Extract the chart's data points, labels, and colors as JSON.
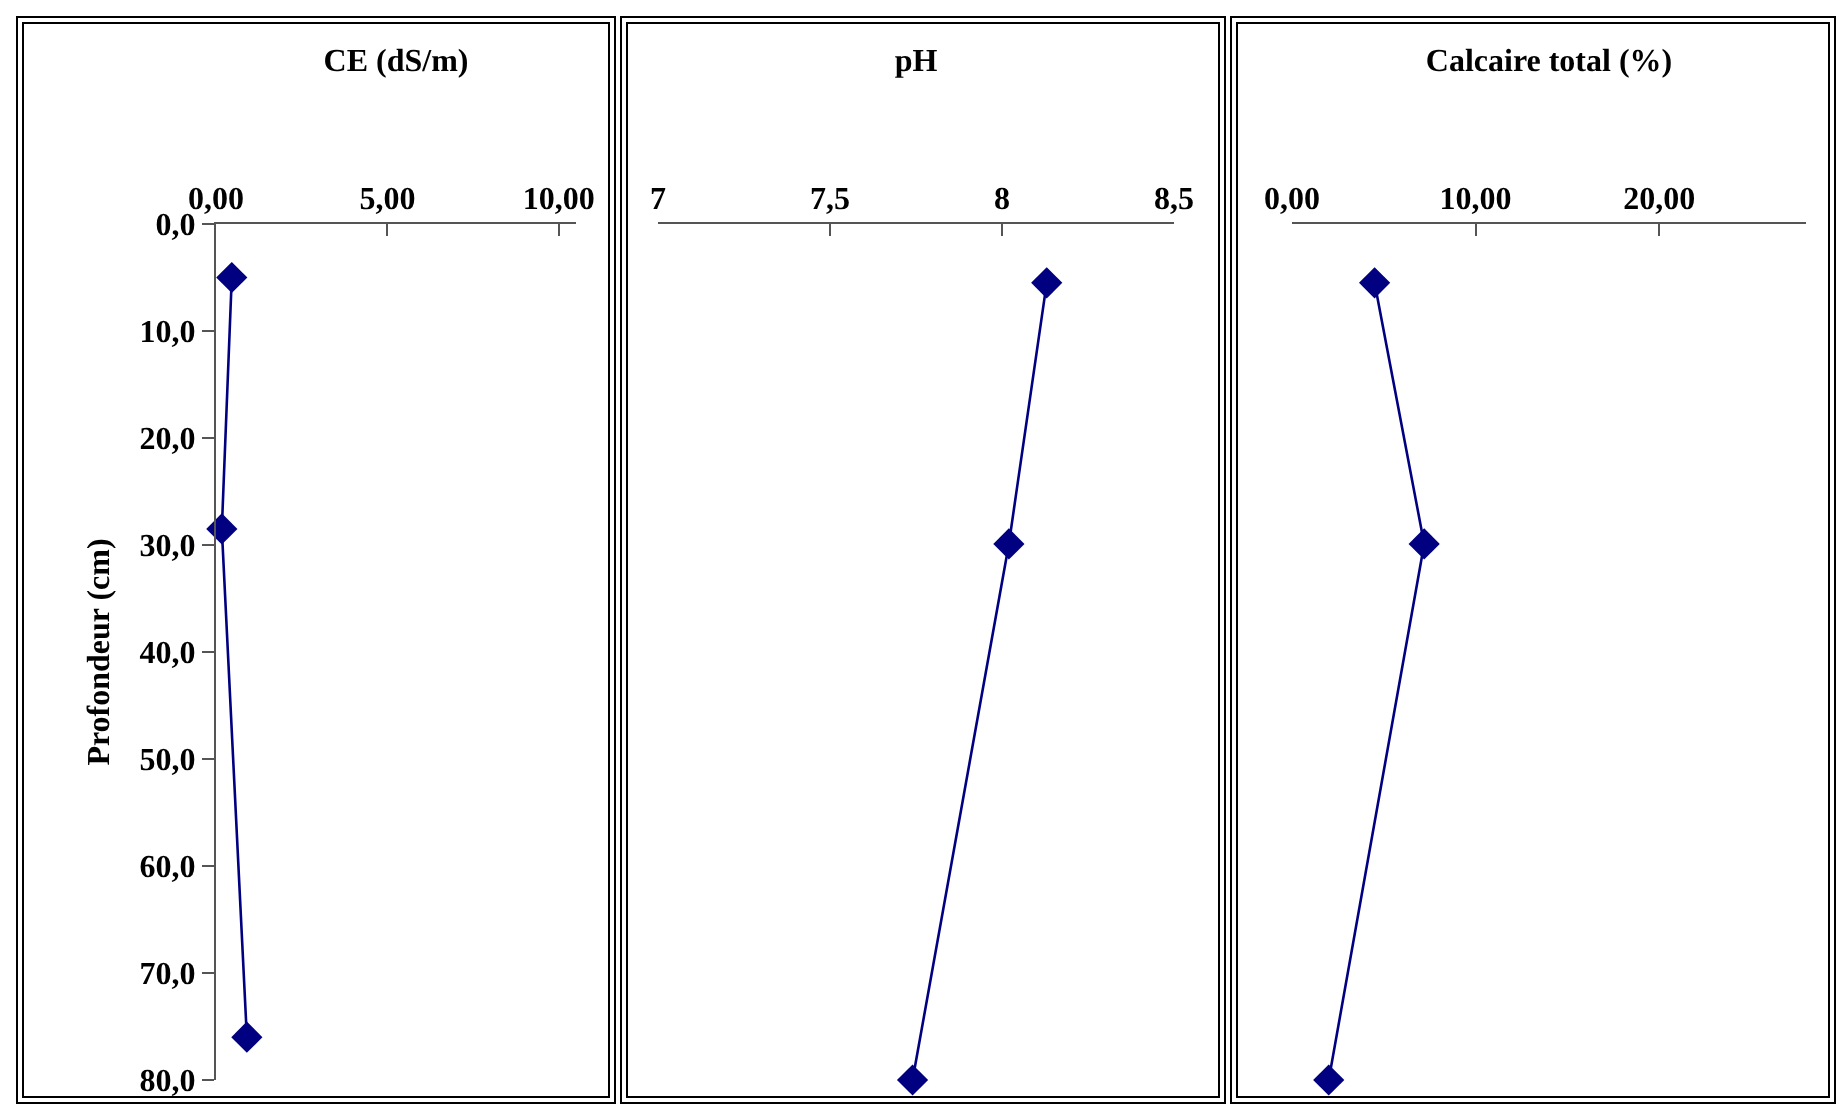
{
  "chart_data": [
    {
      "type": "line",
      "title": "CE (dS/m)",
      "ylabel": "Profondeur (cm)",
      "marker": "diamond",
      "line_style": "solid",
      "xlim": [
        0,
        10.5
      ],
      "xticks": [
        {
          "value": 0,
          "label": "0,00"
        },
        {
          "value": 5,
          "label": "5,00"
        },
        {
          "value": 10,
          "label": "10,00"
        }
      ],
      "ylim": [
        80,
        0
      ],
      "yticks": [
        {
          "value": 0,
          "label": "0,0"
        },
        {
          "value": 10,
          "label": "10,0"
        },
        {
          "value": 20,
          "label": "20,0"
        },
        {
          "value": 30,
          "label": "30,0"
        },
        {
          "value": 40,
          "label": "40,0"
        },
        {
          "value": 50,
          "label": "50,0"
        },
        {
          "value": 60,
          "label": "60,0"
        },
        {
          "value": 70,
          "label": "70,0"
        },
        {
          "value": 80,
          "label": "80,0"
        }
      ],
      "series": [
        {
          "color": "#000080",
          "x": [
            0.46,
            0.17,
            0.9
          ],
          "values": [
            5,
            28.5,
            76
          ]
        }
      ]
    },
    {
      "type": "line",
      "title": "pH",
      "marker": "diamond",
      "line_style": "solid",
      "tick_labels": "x",
      "xlim": [
        7,
        8.5
      ],
      "xticks": [
        7,
        {
          "value": 7.5,
          "label": "7,5"
        },
        8,
        {
          "value": 8.5,
          "label": "8,5"
        }
      ],
      "ylim": [
        80,
        0
      ],
      "series": [
        {
          "color": "#000080",
          "x": [
            8.13,
            8.02,
            7.74
          ],
          "values": [
            5.5,
            29.9,
            80
          ]
        }
      ]
    },
    {
      "type": "line",
      "title": "Calcaire total (%)",
      "marker": "diamond",
      "line_style": "solid",
      "tick_labels": "x",
      "xlim": [
        0,
        28
      ],
      "xticks": [
        {
          "value": 0,
          "label": "0,00"
        },
        {
          "value": 10,
          "label": "10,00"
        },
        {
          "value": 20,
          "label": "20,00"
        }
      ],
      "ylim": [
        80,
        0
      ],
      "series": [
        {
          "color": "#000080",
          "x": [
            4.5,
            7.2,
            2.0
          ],
          "values": [
            5.5,
            29.9,
            80
          ]
        }
      ]
    }
  ]
}
